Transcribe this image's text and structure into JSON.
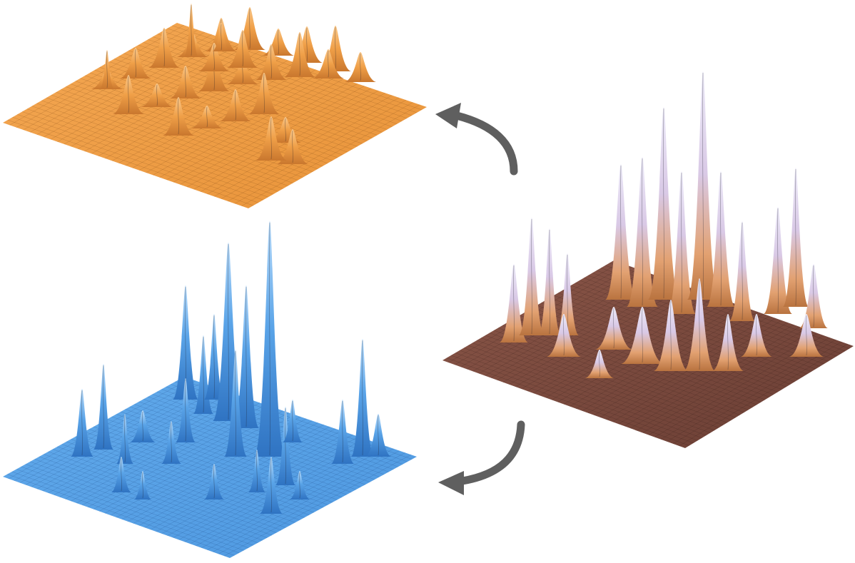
{
  "figure": {
    "panels": [
      {
        "name": "orange-surface",
        "base_color": "#f2a04a",
        "shade_color": "#c9772e",
        "highlight_color": "#f9c78a"
      },
      {
        "name": "blue-surface",
        "base_color": "#5aa4e8",
        "shade_color": "#2f73c2",
        "highlight_color": "#a9d2f7"
      },
      {
        "name": "mixed-surface",
        "base_color": "#7a4a3e",
        "shade_color": "#d08a55",
        "highlight_color": "#e7e3f7"
      }
    ],
    "arrows": [
      {
        "name": "arrow-to-orange",
        "color": "#5f5f5f"
      },
      {
        "name": "arrow-to-blue",
        "color": "#5f5f5f"
      }
    ]
  }
}
